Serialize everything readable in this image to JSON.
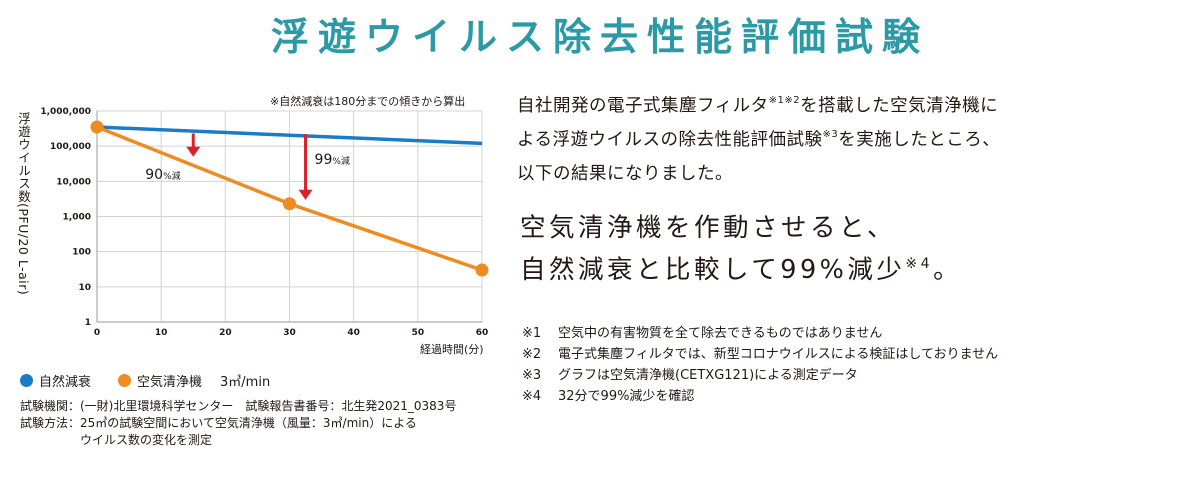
{
  "title": "浮遊ウイルス除去性能評価試験",
  "chart_data": {
    "type": "line",
    "yscale": "log",
    "note": "※自然減衰は180分までの傾きから算出",
    "xlabel": "経過時間(分)",
    "ylabel": "浮遊ウイルス数(PFU/20 L-air)",
    "xlim": [
      0,
      60
    ],
    "ylim": [
      1,
      1000000
    ],
    "xticks": [
      0,
      10,
      20,
      30,
      40,
      50,
      60
    ],
    "xtick_labels": [
      "0",
      "10",
      "20",
      "30",
      "40",
      "50",
      "60"
    ],
    "yticks": [
      1,
      10,
      100,
      1000,
      10000,
      100000,
      1000000
    ],
    "ytick_labels": [
      "1",
      "10",
      "100",
      "1,000",
      "10,000",
      "100,000",
      "1,000,000"
    ],
    "grid": true,
    "series": [
      {
        "name": "自然減衰",
        "color": "#1a7cc4",
        "x": [
          0,
          60
        ],
        "y": [
          350000,
          120000
        ],
        "markers": false
      },
      {
        "name": "空気清浄機",
        "color": "#ee8b22",
        "x": [
          0,
          30,
          60
        ],
        "y": [
          350000,
          2300,
          30
        ],
        "markers": true
      }
    ],
    "annotations": [
      {
        "value": "90",
        "unit": "%減",
        "arrow_x": 15,
        "arrow_from": 230000,
        "arrow_to": 50000
      },
      {
        "value": "99",
        "unit": "%減",
        "arrow_x": 32.5,
        "arrow_from": 220000,
        "arrow_to": 3000
      }
    ],
    "arrow_color": "#d9232b"
  },
  "legend": [
    {
      "label": "自然減衰",
      "color": "#1a7cc4"
    },
    {
      "label": "空気清浄機",
      "color": "#ee8b22",
      "extra": "3㎥/min"
    }
  ],
  "info": {
    "line1": "試験機関：(一財)北里環境科学センター　試験報告書番号：北生発2021_0383号",
    "line2": "試験方法：25㎥の試験空間において空気清浄機（風量：3㎥/min）による",
    "line3": "　　　　　ウイルス数の変化を測定"
  },
  "intro": {
    "l1a": "自社開発の電子式集塵フィルタ",
    "l1sup": "※1※2",
    "l1b": "を搭載した空気清浄機に",
    "l2a": "よる浮遊ウイルスの除去性能評価試験",
    "l2sup": "※3",
    "l2b": "を実施したところ、",
    "l3": "以下の結果になりました。"
  },
  "headline": {
    "l1": "空気清浄機を作動させると、",
    "l2a": "自然減衰と比較して99%減少",
    "l2sup": "※4",
    "l2b": "。"
  },
  "footnotes": [
    {
      "mark": "※1",
      "text": "空気中の有害物質を全て除去できるものではありません"
    },
    {
      "mark": "※2",
      "text": "電子式集塵フィルタでは、新型コロナウイルスによる検証はしておりません"
    },
    {
      "mark": "※3",
      "text": "グラフは空気清浄機(CETXG121)による測定データ"
    },
    {
      "mark": "※4",
      "text": "32分で99%減少を確認"
    }
  ]
}
